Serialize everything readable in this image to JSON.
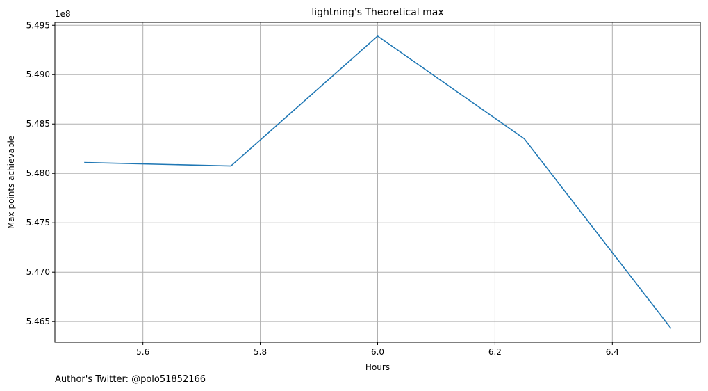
{
  "chart_data": {
    "type": "line",
    "title": "lightning's Theoretical max",
    "xlabel": "Hours",
    "ylabel": "Max points achievable",
    "y_offset_label": "1e8",
    "x": [
      5.5,
      5.75,
      6.0,
      6.25,
      6.5
    ],
    "series": [
      {
        "values": [
          548110000,
          548075000,
          549390000,
          548350000,
          546430000
        ],
        "color": "#1f77b4"
      }
    ],
    "xlim": [
      5.45,
      6.55
    ],
    "ylim": [
      546290000,
      549530000
    ],
    "x_ticks": [
      5.6,
      5.8,
      6.0,
      6.2,
      6.4
    ],
    "x_tick_labels": [
      "5.6",
      "5.8",
      "6.0",
      "6.2",
      "6.4"
    ],
    "y_ticks": [
      546500000,
      547000000,
      547500000,
      548000000,
      548500000,
      549000000,
      549500000
    ],
    "y_tick_labels": [
      "5.465",
      "5.470",
      "5.475",
      "5.480",
      "5.485",
      "5.490",
      "5.495"
    ],
    "grid": true
  },
  "footer": {
    "text": "Author's Twitter: @polo51852166"
  }
}
